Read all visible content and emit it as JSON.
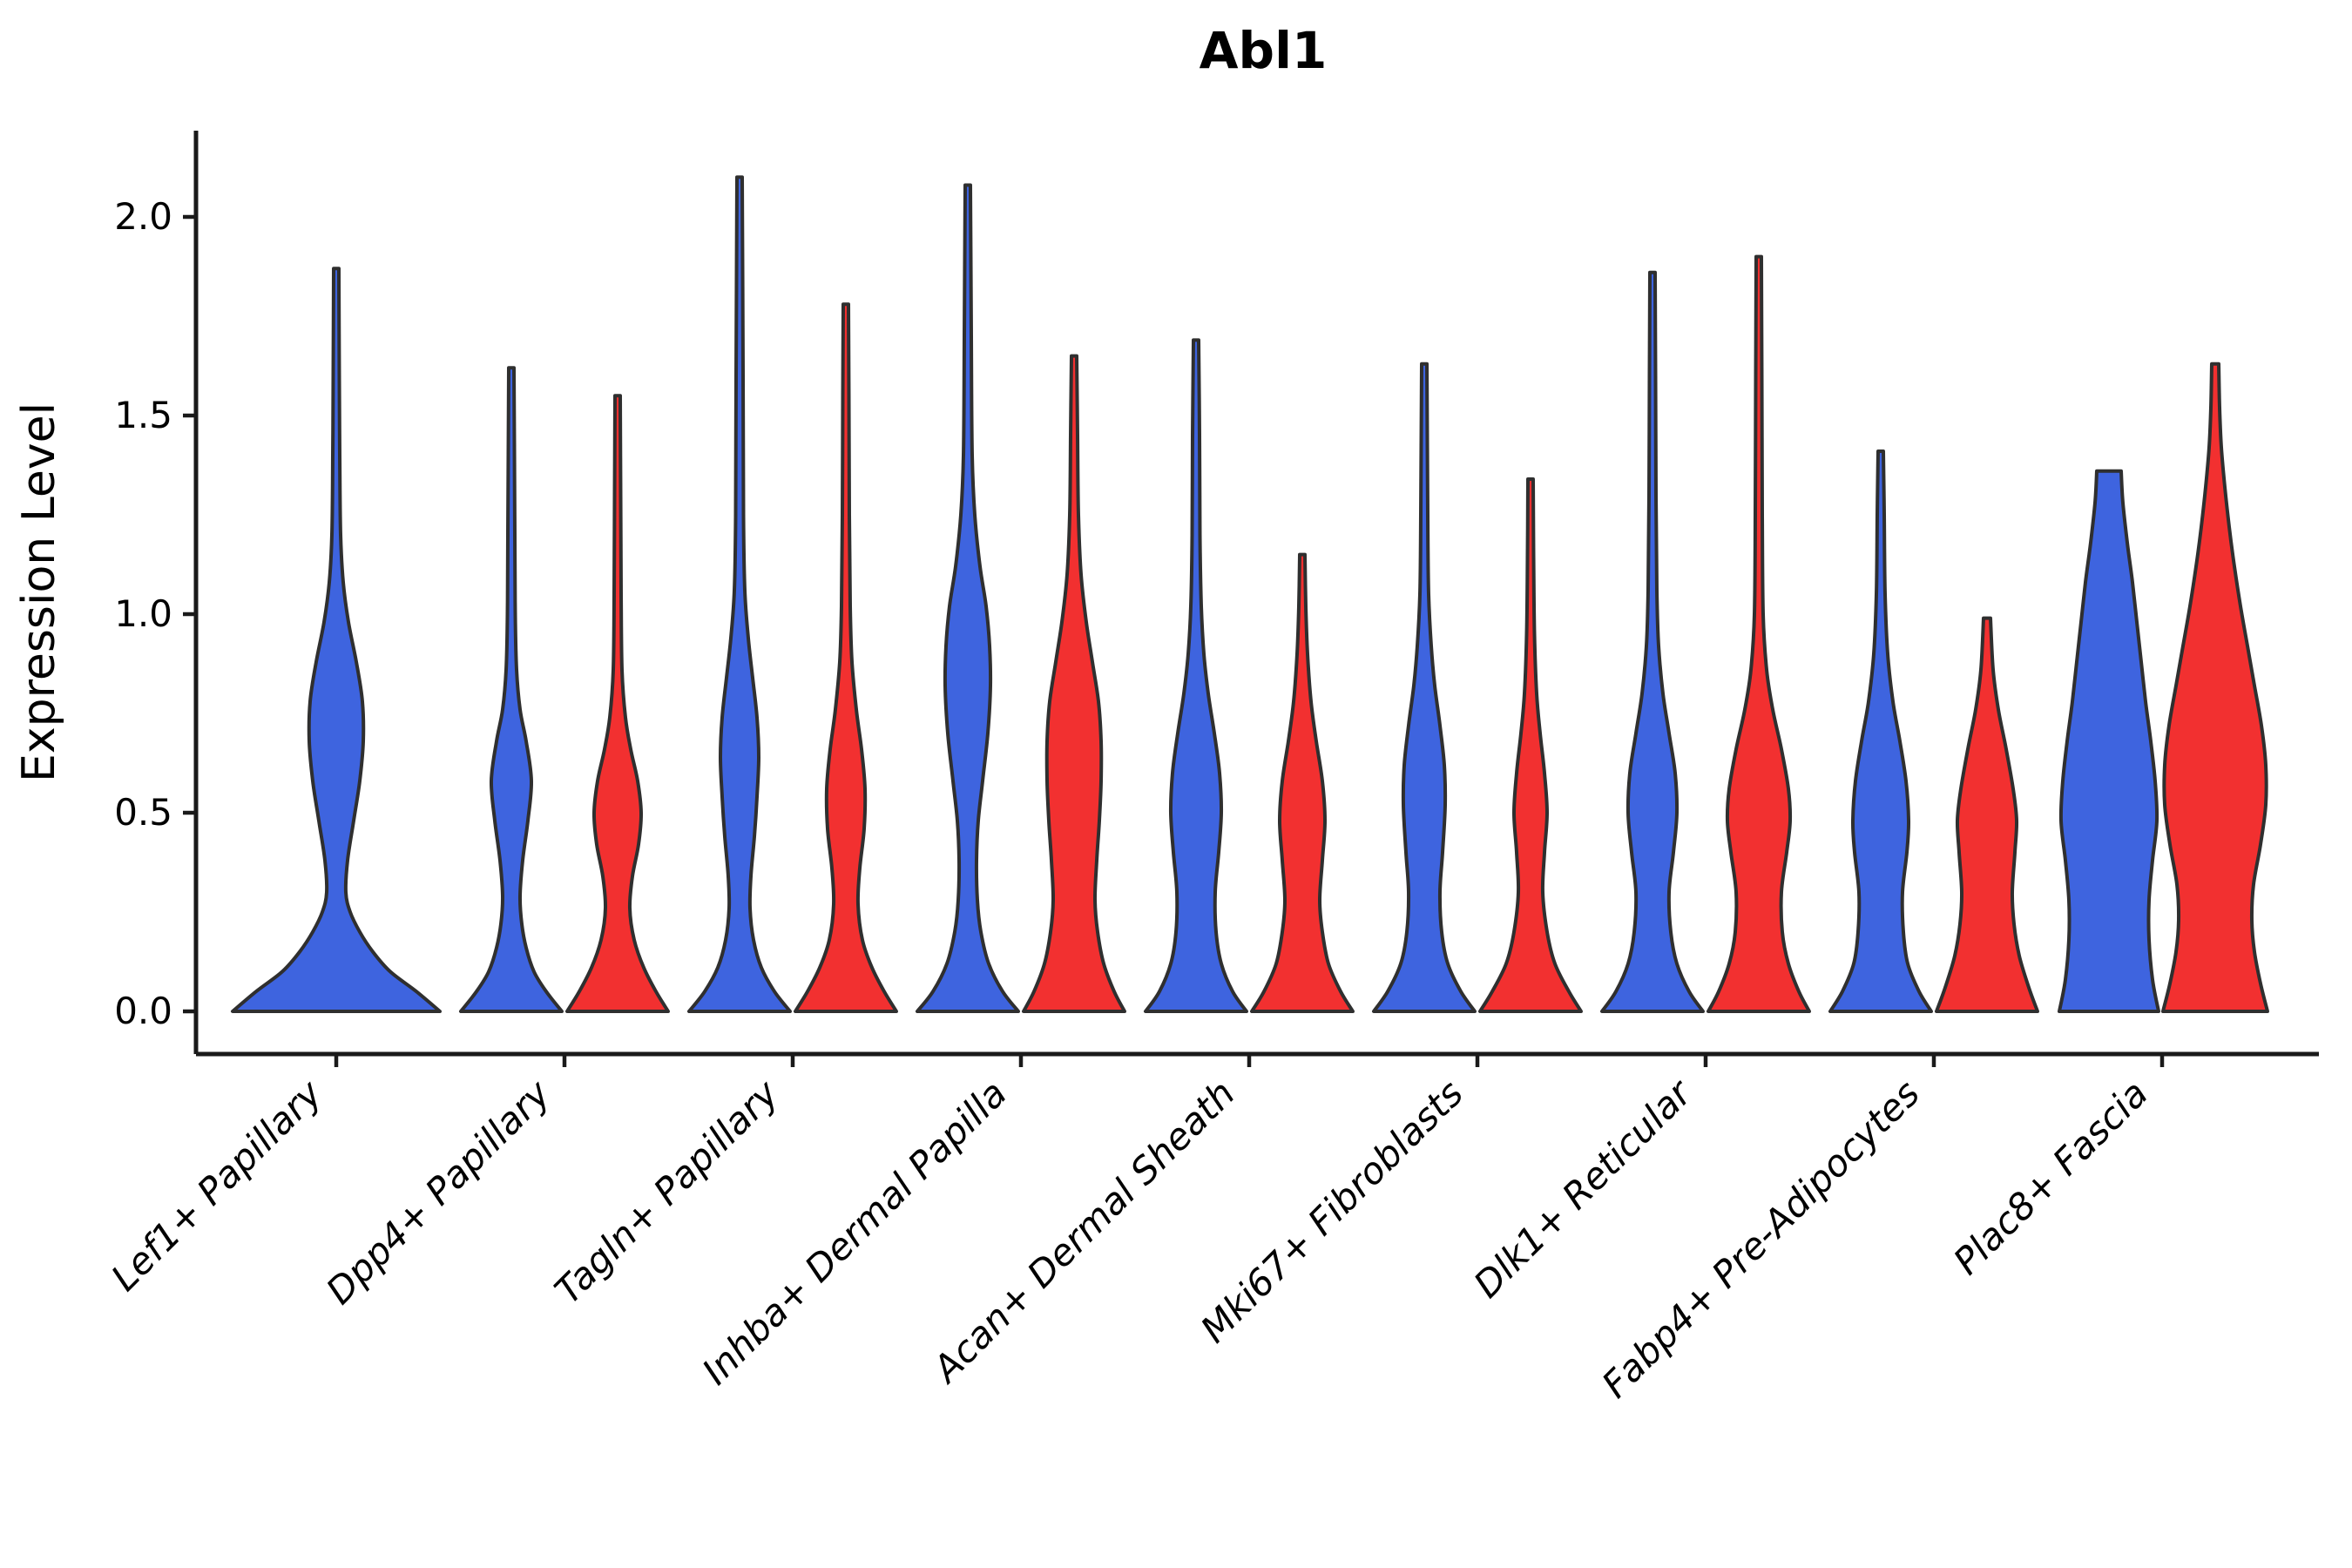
{
  "title": "Abl1",
  "y_axis": {
    "label": "Expression Level",
    "tick_labels": [
      "0.0",
      "0.5",
      "1.0",
      "1.5",
      "2.0"
    ],
    "tick_values": [
      0.0,
      0.5,
      1.0,
      1.5,
      2.0
    ]
  },
  "colors": {
    "blue": "#3E64DF",
    "red": "#F23030",
    "outline": "#2f2f2f",
    "axis": "#1a1a1a"
  },
  "chart_data": {
    "type": "violin",
    "title": "Abl1",
    "xlabel": "",
    "ylabel": "Expression Level",
    "ylim": [
      0,
      2.2
    ],
    "yticks": [
      0.0,
      0.5,
      1.0,
      1.5,
      2.0
    ],
    "grid": false,
    "legend": "none",
    "categories": [
      "Lef1+ Papillary",
      "Dpp4+ Papillary",
      "Tagln+ Papillary",
      "Inhba+ Dermal Papilla",
      "Acan+ Dermal Sheath",
      "Mki67+ Fibroblasts",
      "Dlk1+ Reticular",
      "Fabp4+ Pre-Adipocytes",
      "Plac8+ Fascia"
    ],
    "series": [
      {
        "id": "blue",
        "color": "#3E64DF"
      },
      {
        "id": "red",
        "color": "#F23030"
      }
    ],
    "violins": [
      {
        "category": "Lef1+ Papillary",
        "series": "blue",
        "span": "full",
        "max": 1.87,
        "flat_top": false,
        "profile": [
          [
            0,
            119
          ],
          [
            0.05,
            92
          ],
          [
            0.1,
            62
          ],
          [
            0.15,
            42
          ],
          [
            0.2,
            27
          ],
          [
            0.25,
            16
          ],
          [
            0.3,
            11
          ],
          [
            0.38,
            13
          ],
          [
            0.48,
            20
          ],
          [
            0.58,
            27
          ],
          [
            0.68,
            31
          ],
          [
            0.78,
            30
          ],
          [
            0.88,
            23
          ],
          [
            0.98,
            14
          ],
          [
            1.08,
            8
          ],
          [
            1.2,
            5
          ],
          [
            1.4,
            4
          ],
          [
            1.6,
            3.5
          ],
          [
            1.87,
            3
          ]
        ]
      },
      {
        "category": "Dpp4+ Papillary",
        "series": "blue",
        "span": "half",
        "max": 1.62,
        "flat_top": false,
        "profile": [
          [
            0,
            58
          ],
          [
            0.05,
            40
          ],
          [
            0.1,
            26
          ],
          [
            0.16,
            17
          ],
          [
            0.22,
            12
          ],
          [
            0.29,
            10
          ],
          [
            0.38,
            13
          ],
          [
            0.48,
            19
          ],
          [
            0.58,
            23
          ],
          [
            0.68,
            17
          ],
          [
            0.76,
            10
          ],
          [
            0.86,
            6
          ],
          [
            1.0,
            4.5
          ],
          [
            1.2,
            4
          ],
          [
            1.62,
            3
          ]
        ]
      },
      {
        "category": "Dpp4+ Papillary",
        "series": "red",
        "span": "half",
        "max": 1.55,
        "flat_top": false,
        "profile": [
          [
            0,
            58
          ],
          [
            0.05,
            44
          ],
          [
            0.11,
            30
          ],
          [
            0.18,
            19
          ],
          [
            0.26,
            14
          ],
          [
            0.34,
            17
          ],
          [
            0.42,
            24
          ],
          [
            0.5,
            27
          ],
          [
            0.58,
            23
          ],
          [
            0.66,
            15
          ],
          [
            0.74,
            9
          ],
          [
            0.86,
            5
          ],
          [
            1.05,
            4
          ],
          [
            1.3,
            3.5
          ],
          [
            1.55,
            3
          ]
        ]
      },
      {
        "category": "Tagln+ Papillary",
        "series": "blue",
        "span": "half",
        "max": 2.1,
        "flat_top": false,
        "profile": [
          [
            0,
            58
          ],
          [
            0.05,
            40
          ],
          [
            0.11,
            25
          ],
          [
            0.18,
            16
          ],
          [
            0.26,
            12
          ],
          [
            0.34,
            13
          ],
          [
            0.44,
            17
          ],
          [
            0.54,
            20
          ],
          [
            0.64,
            22
          ],
          [
            0.74,
            20
          ],
          [
            0.84,
            15
          ],
          [
            0.94,
            10
          ],
          [
            1.06,
            6
          ],
          [
            1.25,
            4.5
          ],
          [
            1.6,
            4
          ],
          [
            2.1,
            3
          ]
        ]
      },
      {
        "category": "Tagln+ Papillary",
        "series": "red",
        "span": "half",
        "max": 1.78,
        "flat_top": false,
        "profile": [
          [
            0,
            58
          ],
          [
            0.05,
            44
          ],
          [
            0.11,
            30
          ],
          [
            0.18,
            19
          ],
          [
            0.27,
            14
          ],
          [
            0.36,
            16
          ],
          [
            0.46,
            21
          ],
          [
            0.56,
            22
          ],
          [
            0.66,
            18
          ],
          [
            0.76,
            12
          ],
          [
            0.88,
            7
          ],
          [
            1.02,
            5
          ],
          [
            1.25,
            4
          ],
          [
            1.55,
            3.5
          ],
          [
            1.78,
            3
          ]
        ]
      },
      {
        "category": "Inhba+ Dermal Papilla",
        "series": "blue",
        "span": "half",
        "max": 2.08,
        "flat_top": false,
        "profile": [
          [
            0,
            58
          ],
          [
            0.05,
            40
          ],
          [
            0.12,
            24
          ],
          [
            0.2,
            15
          ],
          [
            0.28,
            11
          ],
          [
            0.38,
            10
          ],
          [
            0.48,
            12
          ],
          [
            0.58,
            17
          ],
          [
            0.7,
            23
          ],
          [
            0.82,
            26
          ],
          [
            0.92,
            25
          ],
          [
            1.02,
            21
          ],
          [
            1.12,
            14
          ],
          [
            1.25,
            8
          ],
          [
            1.4,
            5
          ],
          [
            1.7,
            4
          ],
          [
            2.08,
            3
          ]
        ]
      },
      {
        "category": "Inhba+ Dermal Papilla",
        "series": "red",
        "span": "half",
        "max": 1.65,
        "flat_top": false,
        "profile": [
          [
            0,
            58
          ],
          [
            0.05,
            46
          ],
          [
            0.12,
            34
          ],
          [
            0.2,
            27
          ],
          [
            0.28,
            24
          ],
          [
            0.38,
            26
          ],
          [
            0.48,
            29
          ],
          [
            0.58,
            31
          ],
          [
            0.68,
            31
          ],
          [
            0.78,
            28
          ],
          [
            0.88,
            21
          ],
          [
            0.98,
            14
          ],
          [
            1.1,
            8
          ],
          [
            1.25,
            5
          ],
          [
            1.45,
            4
          ],
          [
            1.65,
            3
          ]
        ]
      },
      {
        "category": "Acan+ Dermal Sheath",
        "series": "blue",
        "span": "half",
        "max": 1.69,
        "flat_top": false,
        "profile": [
          [
            0,
            58
          ],
          [
            0.05,
            42
          ],
          [
            0.12,
            29
          ],
          [
            0.2,
            23
          ],
          [
            0.3,
            22
          ],
          [
            0.4,
            26
          ],
          [
            0.5,
            29
          ],
          [
            0.6,
            27
          ],
          [
            0.7,
            21
          ],
          [
            0.8,
            14
          ],
          [
            0.9,
            9
          ],
          [
            1.02,
            6
          ],
          [
            1.2,
            4.5
          ],
          [
            1.45,
            4
          ],
          [
            1.69,
            3
          ]
        ]
      },
      {
        "category": "Acan+ Dermal Sheath",
        "series": "red",
        "span": "half",
        "max": 1.15,
        "flat_top": false,
        "profile": [
          [
            0,
            58
          ],
          [
            0.05,
            44
          ],
          [
            0.12,
            30
          ],
          [
            0.2,
            23
          ],
          [
            0.28,
            20
          ],
          [
            0.38,
            23
          ],
          [
            0.48,
            26
          ],
          [
            0.58,
            23
          ],
          [
            0.68,
            16
          ],
          [
            0.78,
            10
          ],
          [
            0.9,
            6
          ],
          [
            1.02,
            4
          ],
          [
            1.15,
            3
          ]
        ]
      },
      {
        "category": "Mki67+ Fibroblasts",
        "series": "blue",
        "span": "half",
        "max": 1.63,
        "flat_top": false,
        "profile": [
          [
            0,
            58
          ],
          [
            0.05,
            42
          ],
          [
            0.12,
            27
          ],
          [
            0.2,
            20
          ],
          [
            0.3,
            18
          ],
          [
            0.4,
            21
          ],
          [
            0.52,
            24
          ],
          [
            0.62,
            23
          ],
          [
            0.72,
            18
          ],
          [
            0.82,
            12
          ],
          [
            0.92,
            8
          ],
          [
            1.05,
            5
          ],
          [
            1.25,
            4
          ],
          [
            1.63,
            3
          ]
        ]
      },
      {
        "category": "Mki67+ Fibroblasts",
        "series": "red",
        "span": "half",
        "max": 1.34,
        "flat_top": false,
        "profile": [
          [
            0,
            58
          ],
          [
            0.05,
            44
          ],
          [
            0.12,
            28
          ],
          [
            0.2,
            19
          ],
          [
            0.3,
            14
          ],
          [
            0.4,
            16
          ],
          [
            0.5,
            19
          ],
          [
            0.6,
            16
          ],
          [
            0.7,
            11
          ],
          [
            0.8,
            7
          ],
          [
            0.95,
            4.5
          ],
          [
            1.15,
            3.5
          ],
          [
            1.34,
            3
          ]
        ]
      },
      {
        "category": "Dlk1+ Reticular",
        "series": "blue",
        "span": "half",
        "max": 1.86,
        "flat_top": false,
        "profile": [
          [
            0,
            58
          ],
          [
            0.05,
            42
          ],
          [
            0.12,
            28
          ],
          [
            0.2,
            21
          ],
          [
            0.3,
            19
          ],
          [
            0.4,
            24
          ],
          [
            0.5,
            28
          ],
          [
            0.6,
            26
          ],
          [
            0.7,
            19
          ],
          [
            0.8,
            12
          ],
          [
            0.92,
            7
          ],
          [
            1.06,
            5
          ],
          [
            1.3,
            4
          ],
          [
            1.6,
            3.5
          ],
          [
            1.86,
            3
          ]
        ]
      },
      {
        "category": "Dlk1+ Reticular",
        "series": "red",
        "span": "half",
        "max": 1.9,
        "flat_top": false,
        "profile": [
          [
            0,
            58
          ],
          [
            0.05,
            46
          ],
          [
            0.12,
            34
          ],
          [
            0.2,
            27
          ],
          [
            0.3,
            26
          ],
          [
            0.4,
            32
          ],
          [
            0.48,
            36
          ],
          [
            0.56,
            34
          ],
          [
            0.66,
            26
          ],
          [
            0.76,
            16
          ],
          [
            0.86,
            9
          ],
          [
            1.0,
            5
          ],
          [
            1.25,
            4
          ],
          [
            1.6,
            3.5
          ],
          [
            1.9,
            3
          ]
        ]
      },
      {
        "category": "Fabp4+ Pre-Adipocytes",
        "series": "blue",
        "span": "half",
        "max": 1.41,
        "flat_top": false,
        "profile": [
          [
            0,
            58
          ],
          [
            0.05,
            44
          ],
          [
            0.12,
            31
          ],
          [
            0.2,
            26
          ],
          [
            0.3,
            25
          ],
          [
            0.4,
            30
          ],
          [
            0.48,
            32
          ],
          [
            0.58,
            29
          ],
          [
            0.68,
            22
          ],
          [
            0.78,
            14
          ],
          [
            0.9,
            8
          ],
          [
            1.05,
            5
          ],
          [
            1.25,
            4
          ],
          [
            1.41,
            3
          ]
        ]
      },
      {
        "category": "Fabp4+ Pre-Adipocytes",
        "series": "red",
        "span": "half",
        "max": 0.99,
        "flat_top": false,
        "profile": [
          [
            0,
            58
          ],
          [
            0.06,
            48
          ],
          [
            0.14,
            37
          ],
          [
            0.22,
            31
          ],
          [
            0.3,
            29
          ],
          [
            0.4,
            32
          ],
          [
            0.48,
            34
          ],
          [
            0.56,
            30
          ],
          [
            0.66,
            22
          ],
          [
            0.76,
            13
          ],
          [
            0.86,
            7
          ],
          [
            0.99,
            4
          ]
        ]
      },
      {
        "category": "Plac8+ Fascia",
        "series": "blue",
        "span": "half",
        "max": 1.36,
        "flat_top": true,
        "profile": [
          [
            0,
            57
          ],
          [
            0.08,
            50
          ],
          [
            0.18,
            46
          ],
          [
            0.28,
            46
          ],
          [
            0.38,
            50
          ],
          [
            0.48,
            55
          ],
          [
            0.58,
            53
          ],
          [
            0.68,
            48
          ],
          [
            0.78,
            42
          ],
          [
            0.88,
            37
          ],
          [
            0.98,
            32
          ],
          [
            1.08,
            27
          ],
          [
            1.18,
            21
          ],
          [
            1.28,
            16
          ],
          [
            1.36,
            14
          ]
        ]
      },
      {
        "category": "Plac8+ Fascia",
        "series": "red",
        "span": "half",
        "max": 1.63,
        "flat_top": false,
        "profile": [
          [
            0,
            60
          ],
          [
            0.07,
            52
          ],
          [
            0.15,
            45
          ],
          [
            0.23,
            42
          ],
          [
            0.32,
            44
          ],
          [
            0.42,
            52
          ],
          [
            0.52,
            58
          ],
          [
            0.62,
            58
          ],
          [
            0.72,
            53
          ],
          [
            0.82,
            45
          ],
          [
            0.92,
            37
          ],
          [
            1.02,
            29
          ],
          [
            1.12,
            22
          ],
          [
            1.22,
            16
          ],
          [
            1.32,
            11
          ],
          [
            1.42,
            7
          ],
          [
            1.52,
            5
          ],
          [
            1.63,
            4
          ]
        ]
      }
    ]
  }
}
